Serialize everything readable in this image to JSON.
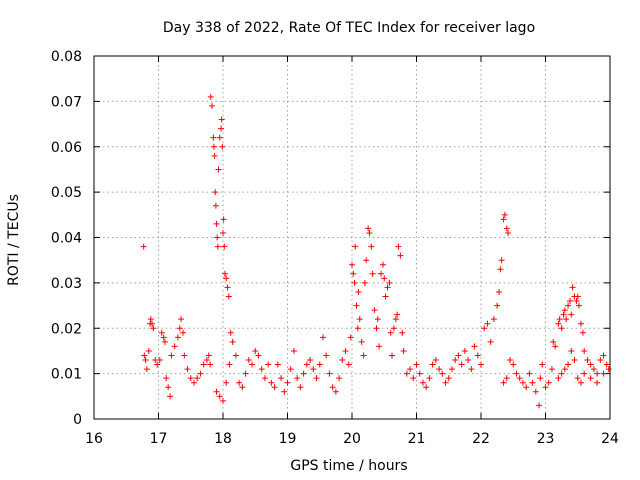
{
  "chart_data": {
    "type": "scatter",
    "title": "Day 338 of 2022, Rate Of TEC Index for receiver lago",
    "xlabel": "GPS time / hours",
    "ylabel": "ROTI / TECUs",
    "xlim": [
      16,
      24
    ],
    "ylim": [
      0,
      0.08
    ],
    "x_ticks": [
      "16",
      "17",
      "18",
      "19",
      "20",
      "21",
      "22",
      "23",
      "24"
    ],
    "y_ticks": [
      "0",
      "0.01",
      "0.02",
      "0.03",
      "0.04",
      "0.05",
      "0.06",
      "0.07",
      "0.08"
    ],
    "grid": true,
    "marker": "plus",
    "color": "#ff0000",
    "series": [
      {
        "name": "ROTI",
        "points": [
          [
            16.77,
            0.038
          ],
          [
            16.78,
            0.014
          ],
          [
            16.8,
            0.013
          ],
          [
            16.82,
            0.011
          ],
          [
            16.85,
            0.015
          ],
          [
            16.87,
            0.021
          ],
          [
            16.88,
            0.022
          ],
          [
            16.9,
            0.021
          ],
          [
            16.92,
            0.02
          ],
          [
            16.95,
            0.013
          ],
          [
            16.98,
            0.012
          ],
          [
            17.02,
            0.013
          ],
          [
            17.05,
            0.019
          ],
          [
            17.08,
            0.018
          ],
          [
            17.1,
            0.017
          ],
          [
            17.12,
            0.009
          ],
          [
            17.15,
            0.007
          ],
          [
            17.18,
            0.005
          ],
          [
            17.2,
            0.014
          ],
          [
            17.25,
            0.016
          ],
          [
            17.3,
            0.018
          ],
          [
            17.33,
            0.02
          ],
          [
            17.35,
            0.022
          ],
          [
            17.38,
            0.019
          ],
          [
            17.4,
            0.014
          ],
          [
            17.45,
            0.011
          ],
          [
            17.5,
            0.009
          ],
          [
            17.55,
            0.008
          ],
          [
            17.6,
            0.009
          ],
          [
            17.65,
            0.01
          ],
          [
            17.7,
            0.012
          ],
          [
            17.75,
            0.013
          ],
          [
            17.78,
            0.014
          ],
          [
            17.8,
            0.012
          ],
          [
            17.81,
            0.071
          ],
          [
            17.83,
            0.069
          ],
          [
            17.85,
            0.062
          ],
          [
            17.86,
            0.06
          ],
          [
            17.87,
            0.058
          ],
          [
            17.88,
            0.05
          ],
          [
            17.89,
            0.047
          ],
          [
            17.9,
            0.043
          ],
          [
            17.91,
            0.04
          ],
          [
            17.92,
            0.038
          ],
          [
            17.93,
            0.055
          ],
          [
            17.95,
            0.062
          ],
          [
            17.97,
            0.064
          ],
          [
            17.98,
            0.066
          ],
          [
            17.99,
            0.06
          ],
          [
            18.0,
            0.041
          ],
          [
            18.01,
            0.044
          ],
          [
            18.02,
            0.038
          ],
          [
            18.03,
            0.032
          ],
          [
            18.05,
            0.031
          ],
          [
            18.07,
            0.029
          ],
          [
            18.09,
            0.027
          ],
          [
            17.9,
            0.006
          ],
          [
            17.95,
            0.005
          ],
          [
            18.0,
            0.004
          ],
          [
            18.05,
            0.008
          ],
          [
            18.1,
            0.012
          ],
          [
            18.12,
            0.019
          ],
          [
            18.15,
            0.017
          ],
          [
            18.2,
            0.014
          ],
          [
            18.25,
            0.008
          ],
          [
            18.3,
            0.007
          ],
          [
            18.35,
            0.01
          ],
          [
            18.4,
            0.013
          ],
          [
            18.45,
            0.012
          ],
          [
            18.5,
            0.015
          ],
          [
            18.55,
            0.014
          ],
          [
            18.6,
            0.011
          ],
          [
            18.65,
            0.009
          ],
          [
            18.7,
            0.012
          ],
          [
            18.75,
            0.008
          ],
          [
            18.8,
            0.007
          ],
          [
            18.85,
            0.012
          ],
          [
            18.9,
            0.009
          ],
          [
            18.95,
            0.006
          ],
          [
            19.0,
            0.008
          ],
          [
            19.05,
            0.011
          ],
          [
            19.1,
            0.015
          ],
          [
            19.15,
            0.009
          ],
          [
            19.2,
            0.007
          ],
          [
            19.25,
            0.01
          ],
          [
            19.3,
            0.012
          ],
          [
            19.35,
            0.013
          ],
          [
            19.4,
            0.011
          ],
          [
            19.45,
            0.009
          ],
          [
            19.5,
            0.012
          ],
          [
            19.55,
            0.018
          ],
          [
            19.6,
            0.014
          ],
          [
            19.65,
            0.01
          ],
          [
            19.7,
            0.007
          ],
          [
            19.75,
            0.006
          ],
          [
            19.8,
            0.009
          ],
          [
            19.85,
            0.013
          ],
          [
            19.9,
            0.015
          ],
          [
            19.95,
            0.012
          ],
          [
            19.98,
            0.018
          ],
          [
            20.0,
            0.034
          ],
          [
            20.02,
            0.032
          ],
          [
            20.04,
            0.03
          ],
          [
            20.05,
            0.038
          ],
          [
            20.07,
            0.025
          ],
          [
            20.09,
            0.02
          ],
          [
            20.1,
            0.028
          ],
          [
            20.12,
            0.022
          ],
          [
            20.15,
            0.017
          ],
          [
            20.18,
            0.014
          ],
          [
            20.2,
            0.03
          ],
          [
            20.22,
            0.035
          ],
          [
            20.25,
            0.042
          ],
          [
            20.27,
            0.041
          ],
          [
            20.3,
            0.038
          ],
          [
            20.32,
            0.032
          ],
          [
            20.35,
            0.024
          ],
          [
            20.38,
            0.02
          ],
          [
            20.4,
            0.022
          ],
          [
            20.42,
            0.016
          ],
          [
            20.45,
            0.032
          ],
          [
            20.48,
            0.034
          ],
          [
            20.5,
            0.031
          ],
          [
            20.52,
            0.027
          ],
          [
            20.55,
            0.029
          ],
          [
            20.58,
            0.03
          ],
          [
            20.6,
            0.019
          ],
          [
            20.62,
            0.014
          ],
          [
            20.65,
            0.02
          ],
          [
            20.68,
            0.022
          ],
          [
            20.7,
            0.023
          ],
          [
            20.72,
            0.038
          ],
          [
            20.75,
            0.036
          ],
          [
            20.78,
            0.019
          ],
          [
            20.8,
            0.015
          ],
          [
            20.85,
            0.01
          ],
          [
            20.9,
            0.011
          ],
          [
            20.95,
            0.009
          ],
          [
            21.0,
            0.012
          ],
          [
            21.05,
            0.01
          ],
          [
            21.1,
            0.008
          ],
          [
            21.15,
            0.007
          ],
          [
            21.2,
            0.009
          ],
          [
            21.25,
            0.012
          ],
          [
            21.3,
            0.013
          ],
          [
            21.35,
            0.011
          ],
          [
            21.4,
            0.01
          ],
          [
            21.45,
            0.008
          ],
          [
            21.5,
            0.009
          ],
          [
            21.55,
            0.011
          ],
          [
            21.6,
            0.013
          ],
          [
            21.65,
            0.014
          ],
          [
            21.7,
            0.012
          ],
          [
            21.75,
            0.015
          ],
          [
            21.8,
            0.013
          ],
          [
            21.85,
            0.011
          ],
          [
            21.9,
            0.016
          ],
          [
            21.95,
            0.014
          ],
          [
            22.0,
            0.012
          ],
          [
            22.05,
            0.02
          ],
          [
            22.1,
            0.021
          ],
          [
            22.15,
            0.017
          ],
          [
            22.2,
            0.022
          ],
          [
            22.25,
            0.025
          ],
          [
            22.28,
            0.028
          ],
          [
            22.3,
            0.033
          ],
          [
            22.32,
            0.035
          ],
          [
            22.35,
            0.044
          ],
          [
            22.37,
            0.045
          ],
          [
            22.4,
            0.042
          ],
          [
            22.42,
            0.041
          ],
          [
            22.35,
            0.008
          ],
          [
            22.4,
            0.009
          ],
          [
            22.45,
            0.013
          ],
          [
            22.5,
            0.012
          ],
          [
            22.55,
            0.01
          ],
          [
            22.6,
            0.009
          ],
          [
            22.65,
            0.008
          ],
          [
            22.7,
            0.007
          ],
          [
            22.75,
            0.01
          ],
          [
            22.8,
            0.008
          ],
          [
            22.85,
            0.006
          ],
          [
            22.9,
            0.003
          ],
          [
            22.92,
            0.009
          ],
          [
            22.95,
            0.012
          ],
          [
            23.0,
            0.007
          ],
          [
            23.05,
            0.008
          ],
          [
            23.1,
            0.011
          ],
          [
            23.12,
            0.017
          ],
          [
            23.15,
            0.016
          ],
          [
            23.2,
            0.021
          ],
          [
            23.22,
            0.022
          ],
          [
            23.25,
            0.02
          ],
          [
            23.28,
            0.023
          ],
          [
            23.3,
            0.024
          ],
          [
            23.32,
            0.022
          ],
          [
            23.35,
            0.025
          ],
          [
            23.38,
            0.026
          ],
          [
            23.4,
            0.023
          ],
          [
            23.42,
            0.029
          ],
          [
            23.45,
            0.027
          ],
          [
            23.48,
            0.026
          ],
          [
            23.5,
            0.027
          ],
          [
            23.52,
            0.025
          ],
          [
            23.55,
            0.021
          ],
          [
            23.58,
            0.019
          ],
          [
            23.6,
            0.015
          ],
          [
            23.65,
            0.013
          ],
          [
            23.7,
            0.012
          ],
          [
            23.75,
            0.011
          ],
          [
            23.8,
            0.01
          ],
          [
            23.85,
            0.013
          ],
          [
            23.9,
            0.014
          ],
          [
            23.95,
            0.012
          ],
          [
            23.98,
            0.011
          ],
          [
            23.2,
            0.009
          ],
          [
            23.25,
            0.01
          ],
          [
            23.3,
            0.011
          ],
          [
            23.35,
            0.012
          ],
          [
            23.4,
            0.015
          ],
          [
            23.45,
            0.013
          ],
          [
            23.5,
            0.009
          ],
          [
            23.55,
            0.008
          ],
          [
            23.6,
            0.01
          ],
          [
            23.7,
            0.009
          ],
          [
            23.8,
            0.008
          ],
          [
            23.9,
            0.01
          ]
        ]
      }
    ]
  }
}
